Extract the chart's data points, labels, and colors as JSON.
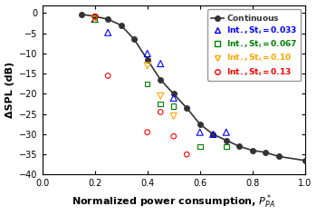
{
  "title": "",
  "xlabel_plain": "Normalized power consumption, ",
  "xlabel_ppa": "P",
  "xlabel_star": "*",
  "xlabel_sub": "PA",
  "ylabel": "ΔSPL (dB)",
  "xlim": [
    0,
    1.0
  ],
  "ylim": [
    -40,
    2
  ],
  "yticks": [
    0,
    -5,
    -10,
    -15,
    -20,
    -25,
    -30,
    -35,
    -40
  ],
  "xticks": [
    0,
    0.2,
    0.4,
    0.6,
    0.8,
    1.0
  ],
  "continuous_x": [
    0.15,
    0.2,
    0.25,
    0.3,
    0.35,
    0.4,
    0.45,
    0.5,
    0.55,
    0.6,
    0.65,
    0.7,
    0.75,
    0.8,
    0.85,
    0.9,
    1.0
  ],
  "continuous_y": [
    -0.3,
    -0.8,
    -1.5,
    -3.0,
    -6.5,
    -11.5,
    -16.5,
    -20.0,
    -23.5,
    -27.5,
    -30.0,
    -31.5,
    -33.0,
    -34.0,
    -34.5,
    -35.5,
    -36.5
  ],
  "series": [
    {
      "label": "Int., St$_i$ = 0.033",
      "label_plain": "Int., St",
      "label_sub": "i",
      "label_val": " = 0.033",
      "color": "#0000FF",
      "marker": "^",
      "markersize": 5,
      "x": [
        0.2,
        0.25,
        0.4,
        0.45,
        0.5,
        0.6,
        0.65,
        0.7
      ],
      "y": [
        -1.5,
        -4.8,
        -10.0,
        -12.5,
        -21.0,
        -29.5,
        -30.0,
        -29.5
      ]
    },
    {
      "label": "Int., St$_i$ = 0.067",
      "label_plain": "Int., St",
      "label_sub": "i",
      "label_val": " = 0.067",
      "color": "#008000",
      "marker": "s",
      "markersize": 4,
      "x": [
        0.2,
        0.4,
        0.45,
        0.5,
        0.6,
        0.7
      ],
      "y": [
        -1.5,
        -17.5,
        -22.5,
        -23.0,
        -33.0,
        -33.0
      ]
    },
    {
      "label": "Int., St$_i$ = 0.10",
      "label_plain": "Int., St",
      "label_sub": "i",
      "label_val": " = 0.10",
      "color": "#FFA500",
      "marker": "v",
      "markersize": 5,
      "x": [
        0.2,
        0.4,
        0.45,
        0.5
      ],
      "y": [
        -1.5,
        -13.0,
        -20.5,
        -25.5
      ]
    },
    {
      "label": "Int., St$_i$ = 0.13",
      "label_plain": "Int., St",
      "label_sub": "i",
      "label_val": " = 0.13",
      "color": "#FF0000",
      "marker": "o",
      "markersize": 4,
      "x": [
        0.2,
        0.25,
        0.4,
        0.45,
        0.5,
        0.55
      ],
      "y": [
        -0.8,
        -15.5,
        -29.5,
        -24.5,
        -30.5,
        -35.0
      ]
    }
  ],
  "continuous_color": "#333333",
  "continuous_linewidth": 1.2,
  "continuous_markersize": 4,
  "legend_fontsize": 6.5,
  "tick_fontsize": 7,
  "label_fontsize": 8
}
